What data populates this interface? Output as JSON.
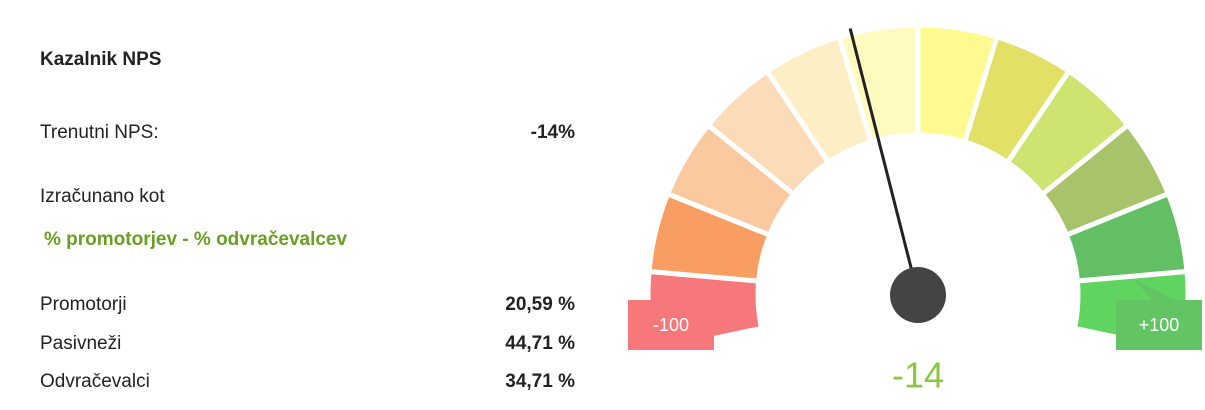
{
  "panel": {
    "title": "Kazalnik NPS",
    "current_label": "Trenutni NPS:",
    "current_value": "-14%",
    "formula_label": "Izračunano kot",
    "formula": "% promotorjev - % odvračevalcev",
    "rows": [
      {
        "label": "Promotorji",
        "value": "20,59 %"
      },
      {
        "label": "Pasivneži",
        "value": "44,71 %"
      },
      {
        "label": "Odvračevalci",
        "value": "34,71 %"
      }
    ]
  },
  "chart_data": {
    "type": "gauge",
    "value": -14,
    "ylim": [
      -100,
      100
    ],
    "yticks": [
      -100,
      {
        "value": 100,
        "label": "+100"
      }
    ],
    "colors": [
      "#f7787a",
      "#f99e62",
      "#fbc9a0",
      "#fcdcb8",
      "#fdeec6",
      "#fffac0",
      "#fdfb8f",
      "#e2e067",
      "#cde470",
      "#a8c46a",
      "#62bf64",
      "#5fd55f"
    ],
    "value_color": "#8dc63f",
    "needle_color": "#222"
  }
}
